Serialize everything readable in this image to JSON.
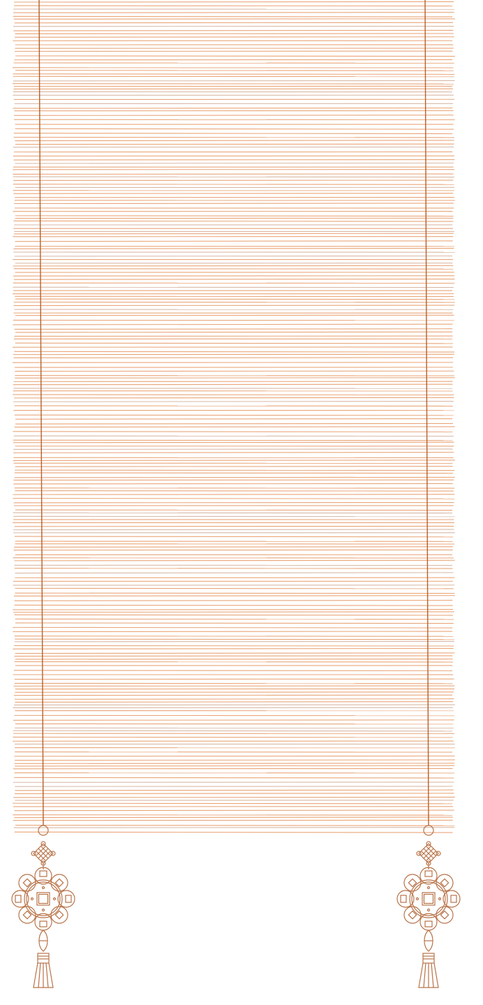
{
  "scene": {
    "blind_color": "#e9a679",
    "blind_alt_color": "#d9b9a6",
    "cord_color": "#b5622e",
    "ornament_color": "#b87349",
    "icons": [
      "bamboo-blind",
      "chinese-knot-icon",
      "coin-medallion-icon",
      "tassel-icon"
    ]
  }
}
